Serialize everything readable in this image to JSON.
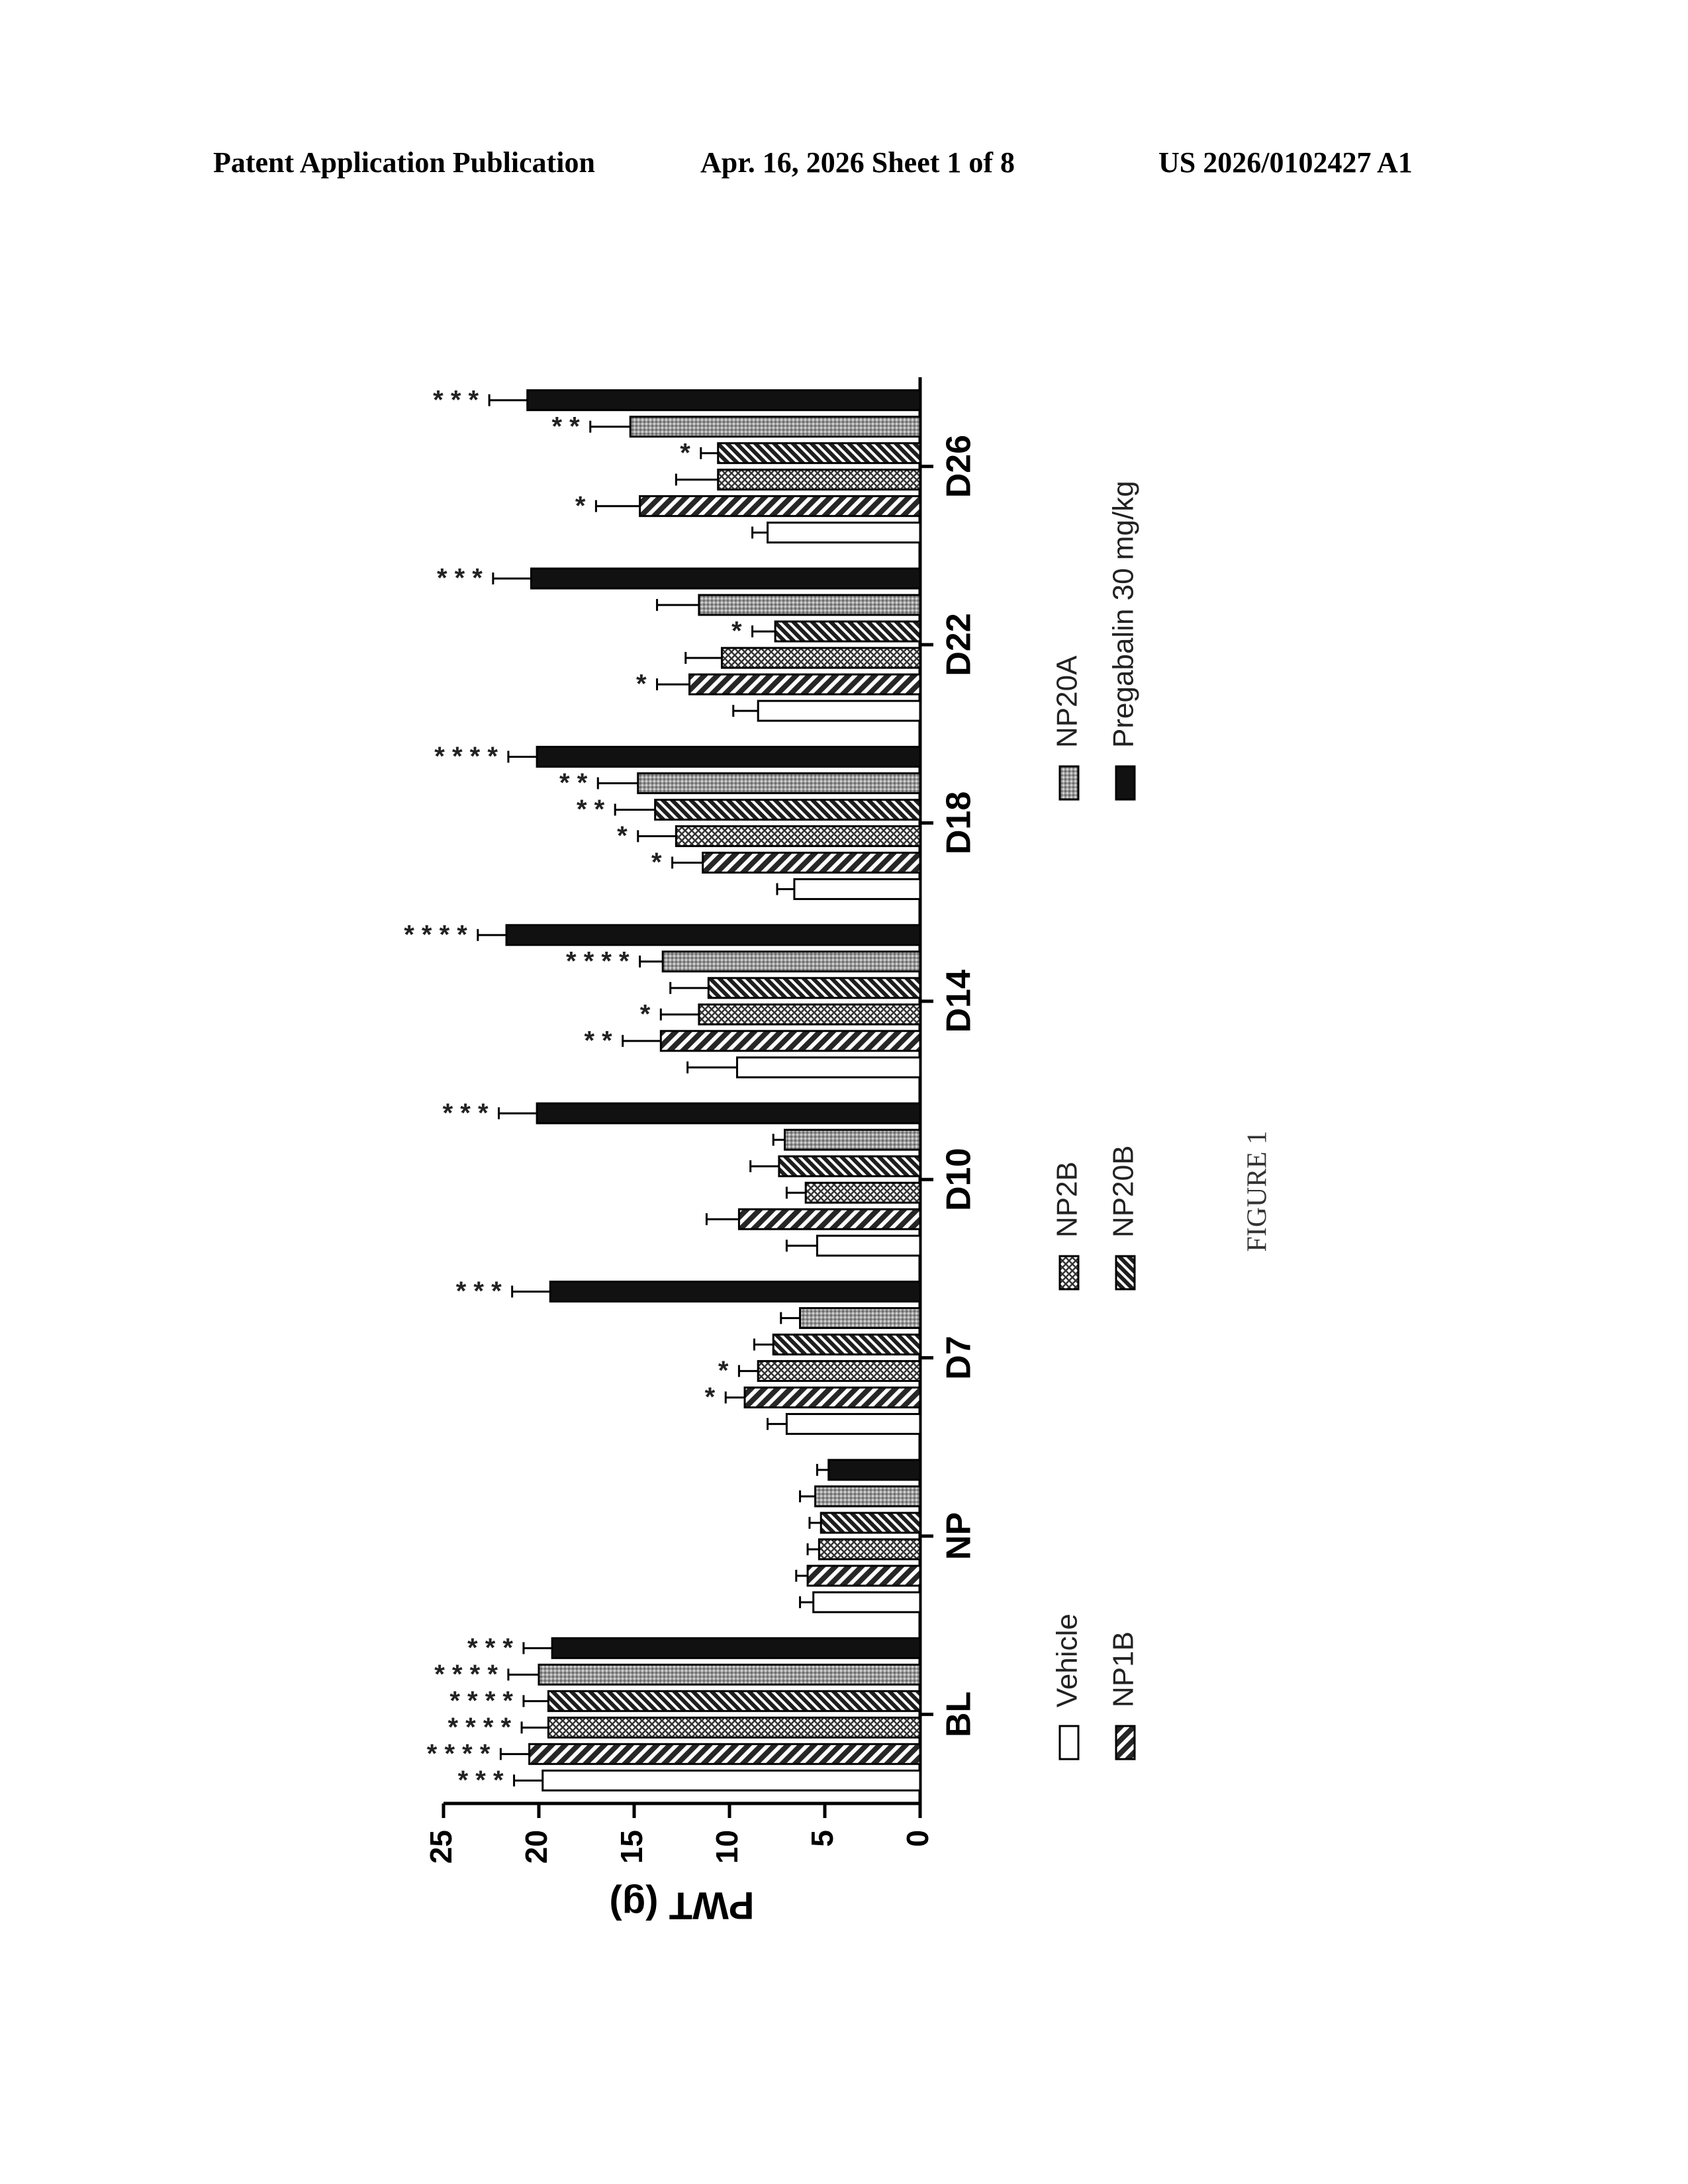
{
  "header": {
    "left": "Patent Application Publication",
    "middle": "Apr. 16, 2026  Sheet 1 of 8",
    "right": "US 2026/0102427 A1"
  },
  "figure_label": "FIGURE 1",
  "chart_data": {
    "type": "bar",
    "orientation": "rotated 90° counter-clockwise on the page",
    "ylabel": "PWT (g)",
    "xlabel": "",
    "ylim": [
      0,
      25
    ],
    "yticks": [
      0,
      5,
      10,
      15,
      20,
      25
    ],
    "grid": false,
    "legend_position": "bottom",
    "categories": [
      "BL",
      "NP",
      "D7",
      "D10",
      "D14",
      "D18",
      "D22",
      "D26"
    ],
    "series": [
      {
        "name": "Vehicle",
        "pattern": "open",
        "values": [
          19.8,
          5.6,
          7.0,
          5.4,
          9.6,
          6.6,
          8.5,
          8.0
        ],
        "errors": [
          1.5,
          0.7,
          1.0,
          1.6,
          2.6,
          0.9,
          1.3,
          0.8
        ],
        "significance": [
          "***",
          "",
          "",
          "",
          "",
          "",
          "",
          ""
        ]
      },
      {
        "name": "NP1B",
        "pattern": "diagonal",
        "values": [
          20.5,
          5.9,
          9.2,
          9.5,
          13.6,
          11.4,
          12.1,
          14.7
        ],
        "errors": [
          1.5,
          0.6,
          1.0,
          1.7,
          2.0,
          1.6,
          1.7,
          2.3
        ],
        "significance": [
          "****",
          "",
          "*",
          "",
          "**",
          "*",
          "*",
          "*"
        ]
      },
      {
        "name": "NP2B",
        "pattern": "crosshatch",
        "values": [
          19.5,
          5.3,
          8.5,
          6.0,
          11.6,
          12.8,
          10.4,
          10.6
        ],
        "errors": [
          1.4,
          0.6,
          1.0,
          1.0,
          2.0,
          2.0,
          1.9,
          2.2
        ],
        "significance": [
          "****",
          "",
          "*",
          "",
          "*",
          "*",
          "",
          ""
        ]
      },
      {
        "name": "NP20B",
        "pattern": "dense diagonal",
        "values": [
          19.5,
          5.2,
          7.7,
          7.4,
          11.1,
          13.9,
          7.6,
          10.6
        ],
        "errors": [
          1.3,
          0.6,
          1.0,
          1.5,
          2.0,
          2.1,
          1.2,
          0.9
        ],
        "significance": [
          "****",
          "",
          "",
          "",
          "",
          "**",
          "*",
          "*"
        ]
      },
      {
        "name": "NP20A",
        "pattern": "dotted",
        "values": [
          20.0,
          5.5,
          6.3,
          7.1,
          13.5,
          14.8,
          11.6,
          15.2
        ],
        "errors": [
          1.6,
          0.8,
          1.0,
          0.6,
          1.2,
          2.1,
          2.2,
          2.1
        ],
        "significance": [
          "****",
          "",
          "",
          "",
          "****",
          "**",
          "",
          "**"
        ]
      },
      {
        "name": "Pregabalin 30 mg/kg",
        "pattern": "solid",
        "values": [
          19.3,
          4.8,
          19.4,
          20.1,
          21.7,
          20.1,
          20.4,
          20.6
        ],
        "errors": [
          1.5,
          0.6,
          2.0,
          2.0,
          1.5,
          1.5,
          2.0,
          2.0
        ],
        "significance": [
          "***",
          "",
          "***",
          "***",
          "****",
          "****",
          "***",
          "***"
        ]
      }
    ]
  }
}
